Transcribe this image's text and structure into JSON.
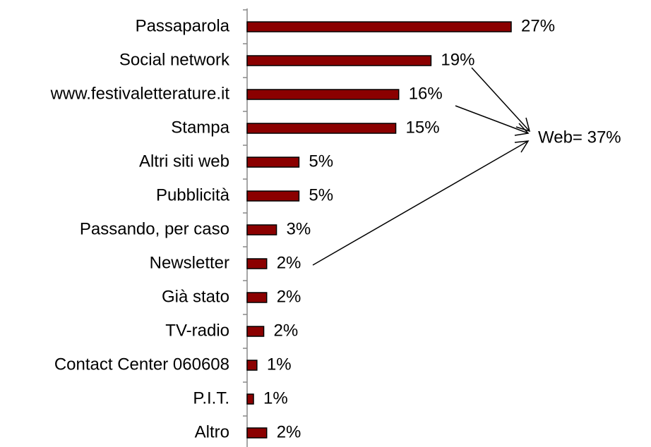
{
  "chart_data": {
    "type": "barh",
    "categories": [
      "Passaparola",
      "Social network",
      "www.festivaletterature.it",
      "Stampa",
      "Altri siti web",
      "Pubblicità",
      "Passando, per caso",
      "Newsletter",
      "Già stato",
      "TV-radio",
      "Contact Center 060608",
      "P.I.T.",
      "Altro"
    ],
    "values": [
      27,
      18.8,
      15.5,
      15.2,
      5.3,
      5.3,
      3,
      2,
      2,
      1.7,
      1,
      0.65,
      2
    ],
    "value_labels": [
      "27%",
      "19%",
      "16%",
      "15%",
      "5%",
      "5%",
      "3%",
      "2%",
      "2%",
      "2%",
      "1%",
      "1%",
      "2%"
    ],
    "color": "#8b0000",
    "xlim": [
      0,
      27
    ],
    "annotation": "Web= 37%"
  }
}
